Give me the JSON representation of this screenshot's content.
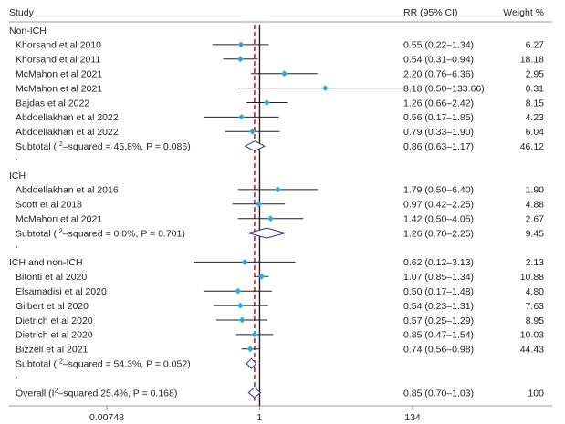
{
  "chart_data": {
    "type": "forest",
    "scale": "log",
    "xlim": [
      0.00748,
      134
    ],
    "reference_value": 1,
    "reference_line_color": "#c0272d",
    "marker_color": "#29abe2",
    "diamond_color": "#2e3192",
    "header": {
      "study": "Study",
      "rr": "RR (95% CI)",
      "weight": "Weight %"
    },
    "x_ticks": [
      {
        "value": 0.00748,
        "label": "0.00748"
      },
      {
        "value": 1,
        "label": "1"
      },
      {
        "value": 134,
        "label": "134"
      }
    ],
    "rows": [
      {
        "kind": "group",
        "label": "Non-ICH"
      },
      {
        "kind": "study",
        "label": "Khorsand et al 2010",
        "rr": 0.55,
        "lo": 0.22,
        "hi": 1.34,
        "ci_text": "0.55 (0.22–1.34)",
        "weight": "6.27"
      },
      {
        "kind": "study",
        "label": "Khorsand et al 2011",
        "rr": 0.54,
        "lo": 0.31,
        "hi": 0.94,
        "ci_text": "0.54 (0.31–0.94)",
        "weight": "18.18"
      },
      {
        "kind": "study",
        "label": "McMahon et al 2021",
        "rr": 2.2,
        "lo": 0.76,
        "hi": 6.36,
        "ci_text": "2.20 (0.76–6.36)",
        "weight": "2.95"
      },
      {
        "kind": "study",
        "label": "McMahon et al 2021",
        "rr": 8.18,
        "lo": 0.5,
        "hi": 133.66,
        "ci_text": "8.18 (0.50–133.66)",
        "weight": "0.31"
      },
      {
        "kind": "study",
        "label": "Bajdas et al 2022",
        "rr": 1.26,
        "lo": 0.66,
        "hi": 2.42,
        "ci_text": "1.26 (0.66–2.42)",
        "weight": "8.15"
      },
      {
        "kind": "study",
        "label": "Abdoellakhan et al 2022",
        "rr": 0.56,
        "lo": 0.17,
        "hi": 1.85,
        "ci_text": "0.56 (0.17–1.85)",
        "weight": "4.23"
      },
      {
        "kind": "study",
        "label": "Abdoellakhan et al 2022",
        "rr": 0.79,
        "lo": 0.33,
        "hi": 1.9,
        "ci_text": "0.79 (0.33–1.90)",
        "weight": "6.04"
      },
      {
        "kind": "subtotal",
        "label": "Subtotal (I",
        "sup": "2",
        "label_rest": "–squared = 45.8%, P = 0.086)",
        "rr": 0.86,
        "lo": 0.63,
        "hi": 1.17,
        "ci_text": "0.86 (0.63–1.17)",
        "weight": "46.12"
      },
      {
        "kind": "dot",
        "label": "."
      },
      {
        "kind": "group",
        "label": "ICH"
      },
      {
        "kind": "study",
        "label": "Abdoellakhan et al 2016",
        "rr": 1.79,
        "lo": 0.5,
        "hi": 6.4,
        "ci_text": "1.79 (0.50–6.40)",
        "weight": "1.90"
      },
      {
        "kind": "study",
        "label": "Scott et al 2018",
        "rr": 0.97,
        "lo": 0.42,
        "hi": 2.25,
        "ci_text": "0.97 (0.42–2.25)",
        "weight": "4.88"
      },
      {
        "kind": "study",
        "label": "McMahon et al 2021",
        "rr": 1.42,
        "lo": 0.5,
        "hi": 4.05,
        "ci_text": "1.42 (0.50–4.05)",
        "weight": "2.67"
      },
      {
        "kind": "subtotal",
        "label": "Subtotal (I",
        "sup": "2",
        "label_rest": "–squared = 0.0%, P = 0.701)",
        "rr": 1.26,
        "lo": 0.7,
        "hi": 2.25,
        "ci_text": "1.26 (0.70–2.25)",
        "weight": "9.45"
      },
      {
        "kind": "dot",
        "label": "."
      },
      {
        "kind": "group",
        "label": "ICH and non-ICH",
        "rr": 0.62,
        "lo": 0.12,
        "hi": 3.13,
        "ci_text": "0.62 (0.12–3.13)",
        "weight": "2.13"
      },
      {
        "kind": "study",
        "label": "Bitonti et al 2020",
        "rr": 1.07,
        "lo": 0.85,
        "hi": 1.34,
        "ci_text": "1.07 (0.85–1.34)",
        "weight": "10.88"
      },
      {
        "kind": "study",
        "label": "Elsamadisi et al 2020",
        "rr": 0.5,
        "lo": 0.17,
        "hi": 1.48,
        "ci_text": "0.50 (0.17–1.48)",
        "weight": "4.80"
      },
      {
        "kind": "study",
        "label": "Gilbert et al 2020",
        "rr": 0.54,
        "lo": 0.23,
        "hi": 1.31,
        "ci_text": "0.54 (0.23–1.31)",
        "weight": "7.63"
      },
      {
        "kind": "study",
        "label": "Dietrich et al 2020",
        "rr": 0.57,
        "lo": 0.25,
        "hi": 1.29,
        "ci_text": "0.57 (0.25–1.29)",
        "weight": "8.95"
      },
      {
        "kind": "study",
        "label": "Dietrich et al 2020",
        "rr": 0.85,
        "lo": 0.47,
        "hi": 1.54,
        "ci_text": "0.85 (0.47–1.54)",
        "weight": "10.03"
      },
      {
        "kind": "study",
        "label": "Bizzell et al 2021",
        "rr": 0.74,
        "lo": 0.56,
        "hi": 0.98,
        "ci_text": "0.74 (0.56–0.98)",
        "weight": "44.43"
      },
      {
        "kind": "subtotal",
        "label": "Subtotal (I",
        "sup": "2",
        "label_rest": "–squared = 54.3%, P = 0.052)",
        "rr": 0.77,
        "lo": 0.66,
        "hi": 0.89
      },
      {
        "kind": "dot",
        "label": "."
      },
      {
        "kind": "overall",
        "label": "Overall (I",
        "sup": "2",
        "label_rest": "–squared 25.4%, P = 0.168)",
        "rr": 0.85,
        "lo": 0.7,
        "hi": 1.03,
        "ci_text": "0.85 (0.70–1.03)",
        "weight": "100"
      }
    ]
  }
}
